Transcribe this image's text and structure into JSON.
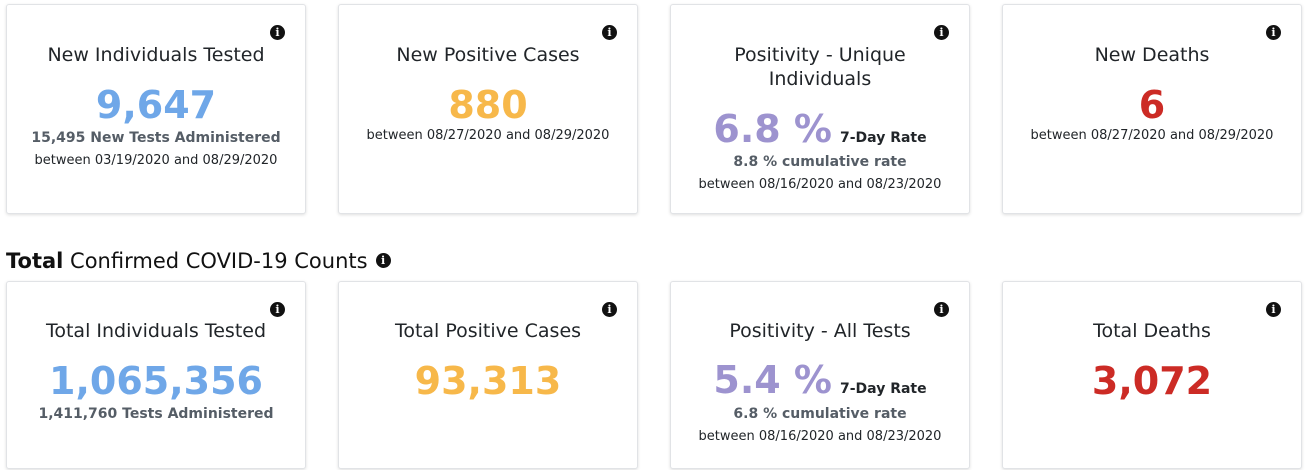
{
  "info_glyph": "i",
  "colors": {
    "blue": "#6fa7e8",
    "orange": "#f7b84a",
    "purple": "#9d93cf",
    "red": "#cc2b25"
  },
  "new_counts": {
    "tested": {
      "title": "New Individuals Tested",
      "value": "9,647",
      "sub": "15,495 New Tests Administered",
      "range": "between 03/19/2020 and 08/29/2020"
    },
    "positive": {
      "title": "New Positive Cases",
      "value": "880",
      "range": "between 08/27/2020 and 08/29/2020"
    },
    "positivity": {
      "title": "Positivity - Unique Individuals",
      "value": "6.8 %",
      "rate_label": "7-Day Rate",
      "cumulative": "8.8 % cumulative rate",
      "range": "between 08/16/2020 and 08/23/2020"
    },
    "deaths": {
      "title": "New Deaths",
      "value": "6",
      "range": "between 08/27/2020 and 08/29/2020"
    }
  },
  "section": {
    "title_bold": "Total",
    "title_rest": " Confirmed COVID-19 Counts"
  },
  "total_counts": {
    "tested": {
      "title": "Total Individuals Tested",
      "value": "1,065,356",
      "sub": "1,411,760 Tests Administered"
    },
    "positive": {
      "title": "Total Positive Cases",
      "value": "93,313"
    },
    "positivity": {
      "title": "Positivity - All Tests",
      "value": "5.4 %",
      "rate_label": "7-Day Rate",
      "cumulative": "6.8 % cumulative rate",
      "range": "between 08/16/2020 and 08/23/2020"
    },
    "deaths": {
      "title": "Total Deaths",
      "value": "3,072"
    }
  }
}
